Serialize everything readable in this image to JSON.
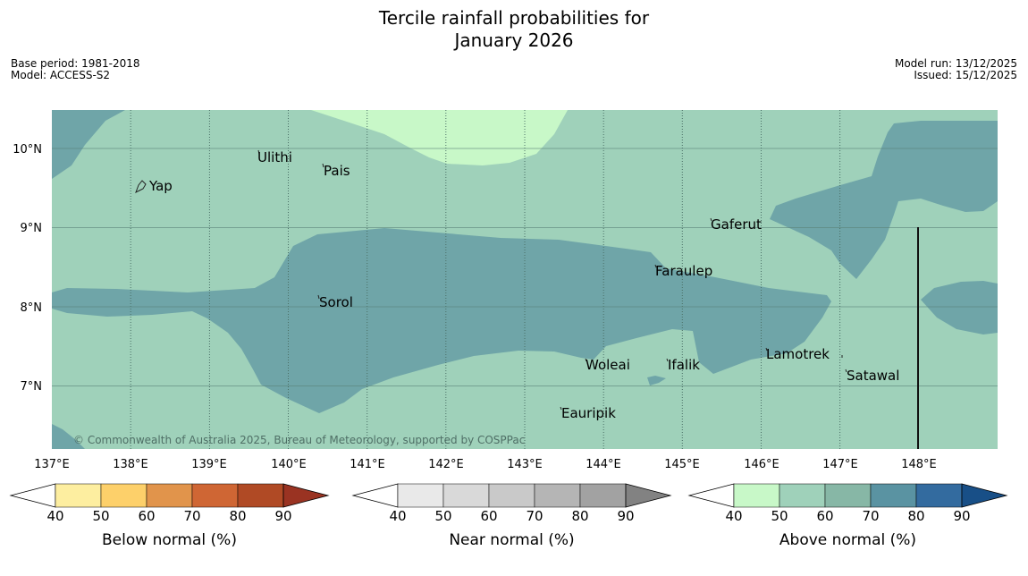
{
  "header": {
    "title_line1": "Tercile rainfall probabilities for",
    "title_line2": "January 2026",
    "base_period": "Base period: 1981-2018",
    "model": "Model: ACCESS-S2",
    "model_run": "Model run: 13/12/2025",
    "issued": "Issued: 15/12/2025"
  },
  "map": {
    "lon_labels": [
      "137°E",
      "138°E",
      "139°E",
      "140°E",
      "141°E",
      "142°E",
      "143°E",
      "144°E",
      "145°E",
      "146°E",
      "147°E",
      "148°E"
    ],
    "lat_labels": [
      "10°N",
      "9°N",
      "8°N",
      "7°N"
    ],
    "places": [
      "Ulithi",
      "Pais",
      "Yap",
      "Gaferut",
      "Faraulep",
      "Sorol",
      "Lamotrek",
      "Woleai",
      "Ifalik",
      "Satawal",
      "Eauripik"
    ],
    "copyright": "© Commonwealth of Australia 2025, Bureau of Meteorology, supported by COSPPac"
  },
  "legends": [
    {
      "label": "Below normal (%)",
      "ticks": [
        "40",
        "50",
        "60",
        "70",
        "80",
        "90"
      ],
      "colors": [
        "#ffffff",
        "#fdeea0",
        "#fdd06a",
        "#e1944b",
        "#cf6634",
        "#b04a25",
        "#9a3322"
      ]
    },
    {
      "label": "Near normal (%)",
      "ticks": [
        "40",
        "50",
        "60",
        "70",
        "80",
        "90"
      ],
      "colors": [
        "#ffffff",
        "#e9e9e9",
        "#d9d9d9",
        "#c9c9c9",
        "#b5b5b5",
        "#a2a2a2",
        "#828282"
      ]
    },
    {
      "label": "Above normal (%)",
      "ticks": [
        "40",
        "50",
        "60",
        "70",
        "80",
        "90"
      ],
      "colors": [
        "#ffffff",
        "#c8f8c8",
        "#9fd1ba",
        "#87b7a6",
        "#5a93a2",
        "#336b9f",
        "#184f87"
      ]
    }
  ]
}
